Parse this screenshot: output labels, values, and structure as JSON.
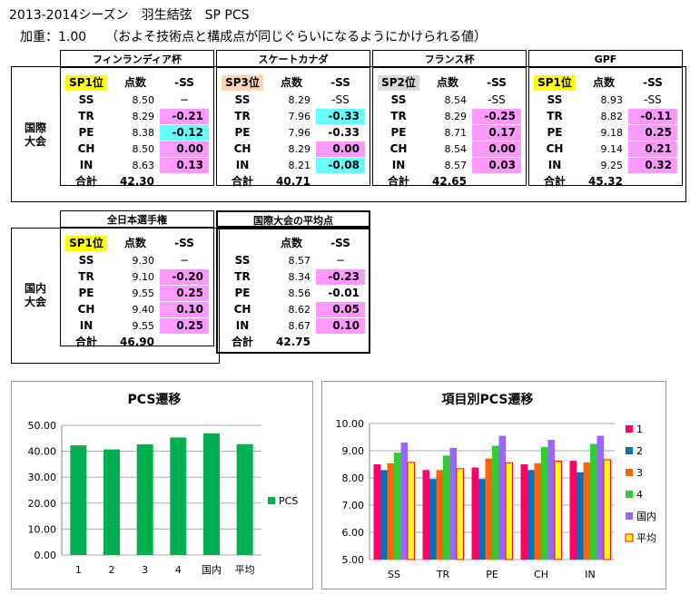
{
  "title": "2013-2014シーズン　羽生結弦　SP PCS",
  "subtitle": "加重：1.00　　（およそ技術点と構成点が同じぐらいになるようにかけられる値）",
  "intl": {
    "side_label": [
      "国際",
      "大会"
    ],
    "col_score": "点数",
    "col_diff": "-SS",
    "total_label": "合計",
    "events": [
      {
        "name": "フィンランディア杯",
        "rank": "SP1位",
        "rank_color": "#ffff00",
        "rows": [
          {
            "label": "SS",
            "score": "8.50",
            "diff": "−",
            "hl": ""
          },
          {
            "label": "TR",
            "score": "8.29",
            "diff": "-0.21",
            "hl": "#ff99ff"
          },
          {
            "label": "PE",
            "score": "8.38",
            "diff": "-0.12",
            "hl": "#66ffff"
          },
          {
            "label": "CH",
            "score": "8.50",
            "diff": "0.00",
            "hl": "#ff99ff"
          },
          {
            "label": "IN",
            "score": "8.63",
            "diff": "0.13",
            "hl": "#ff99ff"
          }
        ],
        "total": "42.30"
      },
      {
        "name": "スケートカナダ",
        "rank": "SP3位",
        "rank_color": "#fcd5b4",
        "rows": [
          {
            "label": "SS",
            "score": "8.29",
            "diff": "-SS",
            "hl": ""
          },
          {
            "label": "TR",
            "score": "7.96",
            "diff": "-0.33",
            "hl": "#66ffff"
          },
          {
            "label": "PE",
            "score": "7.96",
            "diff": "-0.33",
            "hl": ""
          },
          {
            "label": "CH",
            "score": "8.29",
            "diff": "0.00",
            "hl": "#ff99ff"
          },
          {
            "label": "IN",
            "score": "8.21",
            "diff": "-0.08",
            "hl": "#66ffff"
          }
        ],
        "total": "40.71"
      },
      {
        "name": "フランス杯",
        "rank": "SP2位",
        "rank_color": "#d9d9d9",
        "rows": [
          {
            "label": "SS",
            "score": "8.54",
            "diff": "-SS",
            "hl": ""
          },
          {
            "label": "TR",
            "score": "8.29",
            "diff": "-0.25",
            "hl": "#ff99ff"
          },
          {
            "label": "PE",
            "score": "8.71",
            "diff": "0.17",
            "hl": "#ff99ff"
          },
          {
            "label": "CH",
            "score": "8.54",
            "diff": "0.00",
            "hl": "#ff99ff"
          },
          {
            "label": "IN",
            "score": "8.57",
            "diff": "0.03",
            "hl": "#ff99ff"
          }
        ],
        "total": "42.65"
      },
      {
        "name": "GPF",
        "rank": "SP1位",
        "rank_color": "#ffff00",
        "rows": [
          {
            "label": "SS",
            "score": "8.93",
            "diff": "-SS",
            "hl": ""
          },
          {
            "label": "TR",
            "score": "8.82",
            "diff": "-0.11",
            "hl": "#ff99ff"
          },
          {
            "label": "PE",
            "score": "9.18",
            "diff": "0.25",
            "hl": "#ff99ff"
          },
          {
            "label": "CH",
            "score": "9.14",
            "diff": "0.21",
            "hl": "#ff99ff"
          },
          {
            "label": "IN",
            "score": "9.25",
            "diff": "0.32",
            "hl": "#ff99ff"
          }
        ],
        "total": "45.32"
      }
    ]
  },
  "domestic": {
    "side_label": [
      "国内",
      "大会"
    ],
    "events": [
      {
        "name": "全日本選手権",
        "rank": "SP1位",
        "rank_color": "#ffff00",
        "rows": [
          {
            "label": "SS",
            "score": "9.30",
            "diff": "−",
            "hl": ""
          },
          {
            "label": "TR",
            "score": "9.10",
            "diff": "-0.20",
            "hl": "#ff99ff"
          },
          {
            "label": "PE",
            "score": "9.55",
            "diff": "0.25",
            "hl": "#ff99ff"
          },
          {
            "label": "CH",
            "score": "9.40",
            "diff": "0.10",
            "hl": "#ff99ff"
          },
          {
            "label": "IN",
            "score": "9.55",
            "diff": "0.25",
            "hl": "#ff99ff"
          }
        ],
        "total": "46.90"
      },
      {
        "name": "国際大会の平均点",
        "rank": "",
        "rank_color": "",
        "rows": [
          {
            "label": "SS",
            "score": "8.57",
            "diff": "−",
            "hl": ""
          },
          {
            "label": "TR",
            "score": "8.34",
            "diff": "-0.23",
            "hl": "#ff99ff"
          },
          {
            "label": "PE",
            "score": "8.56",
            "diff": "-0.01",
            "hl": ""
          },
          {
            "label": "CH",
            "score": "8.62",
            "diff": "0.05",
            "hl": "#ff99ff"
          },
          {
            "label": "IN",
            "score": "8.67",
            "diff": "0.10",
            "hl": "#ff99ff"
          }
        ],
        "total": "42.75"
      }
    ]
  },
  "chart_data": [
    {
      "type": "bar",
      "title": "PCS遷移",
      "categories": [
        "1",
        "2",
        "3",
        "4",
        "国内",
        "平均"
      ],
      "series": [
        {
          "name": "PCS",
          "color": "#00b050",
          "values": [
            42.3,
            40.71,
            42.65,
            45.32,
            46.9,
            42.75
          ]
        }
      ],
      "ylim": [
        0,
        50
      ],
      "yticks": [
        "0.00",
        "10.00",
        "20.00",
        "30.00",
        "40.00",
        "50.00"
      ],
      "legend": "right",
      "xlabel": "",
      "ylabel": ""
    },
    {
      "type": "bar",
      "title": "項目別PCS遷移",
      "categories": [
        "SS",
        "TR",
        "PE",
        "CH",
        "IN"
      ],
      "series": [
        {
          "name": "1",
          "color": "#ff0066",
          "values": [
            8.5,
            8.29,
            8.38,
            8.5,
            8.63
          ]
        },
        {
          "name": "2",
          "color": "#0070c0",
          "values": [
            8.29,
            7.96,
            7.96,
            8.29,
            8.21
          ]
        },
        {
          "name": "3",
          "color": "#ff6600",
          "values": [
            8.54,
            8.29,
            8.71,
            8.54,
            8.57
          ]
        },
        {
          "name": "4",
          "color": "#33cc33",
          "values": [
            8.93,
            8.82,
            9.18,
            9.14,
            9.25
          ]
        },
        {
          "name": "国内",
          "color": "#9966ff",
          "values": [
            9.3,
            9.1,
            9.55,
            9.4,
            9.55
          ]
        },
        {
          "name": "平均",
          "color": "#ffff00",
          "values": [
            8.57,
            8.34,
            8.56,
            8.62,
            8.67
          ]
        }
      ],
      "ylim": [
        5,
        10
      ],
      "yticks": [
        "5.00",
        "6.00",
        "7.00",
        "8.00",
        "9.00",
        "10.00"
      ],
      "legend": "right",
      "xlabel": "",
      "ylabel": ""
    }
  ]
}
